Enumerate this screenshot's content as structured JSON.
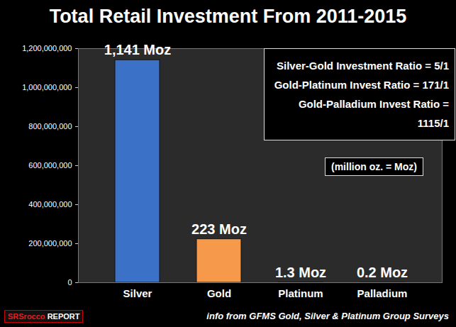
{
  "chart_data": {
    "type": "bar",
    "title": "Total Retail Investment From 2011-2015",
    "categories": [
      "Silver",
      "Gold",
      "Platinum",
      "Palladium"
    ],
    "values": [
      1141000000,
      223000000,
      1300000,
      200000
    ],
    "value_labels": [
      "1,141 Moz",
      "223 Moz",
      "1.3 Moz",
      "0.2 Moz"
    ],
    "colors": [
      "#3b72c8",
      "#f7994a",
      "#9aa4ac",
      "#9aa4ac"
    ],
    "ylim": [
      0,
      1200000000
    ],
    "yticks": [
      0,
      {
        "value": 200000000,
        "label": "200,000,000"
      },
      {
        "value": 400000000,
        "label": "400,000,000"
      },
      {
        "value": 600000000,
        "label": "600,000,000"
      },
      {
        "value": 800000000,
        "label": "800,000,000"
      },
      {
        "value": 1000000000,
        "label": "1,000,000,000"
      },
      {
        "value": 1200000000,
        "label": "1,200,000,000"
      }
    ],
    "grid": false,
    "data_labels": true,
    "annotations": [
      "Silver-Gold Investment Ratio = 5/1",
      "Gold-Platinum Invest Ratio = 171/1",
      "Gold-Palladium Invest Ratio = 1115/1",
      "(million oz. = Moz)"
    ],
    "caption": "info from GFMS Gold, Silver & Platinum Group Surveys",
    "logo": "SRSrocco REPORT"
  }
}
